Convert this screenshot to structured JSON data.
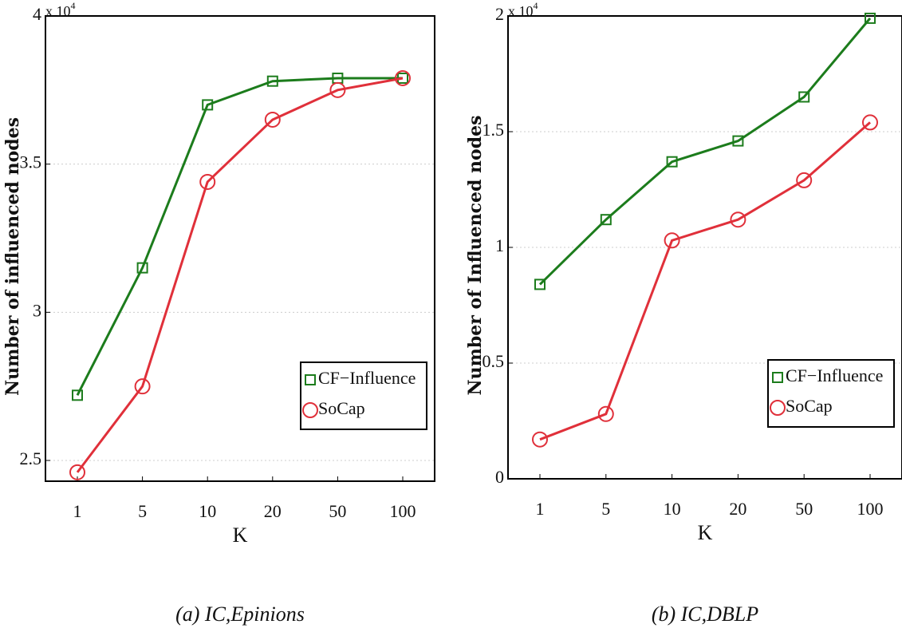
{
  "chart_data": [
    {
      "type": "line",
      "caption": "(a) IC,Epinions",
      "x_label": "K",
      "y_label": "Number of influenced nodes",
      "multiplier": "x 10",
      "multiplier_exp": "4",
      "categories": [
        "1",
        "5",
        "10",
        "20",
        "50",
        "100"
      ],
      "series": [
        {
          "name": "CF−Influence",
          "color": "#1c7c1c",
          "marker": "square",
          "values": [
            2.72,
            3.15,
            3.7,
            3.78,
            3.79,
            3.79
          ]
        },
        {
          "name": "SoCap",
          "color": "#e0303a",
          "marker": "circle",
          "values": [
            2.46,
            2.75,
            3.44,
            3.65,
            3.75,
            3.79
          ]
        }
      ],
      "ylim": [
        2.43,
        4
      ],
      "yticks": [
        2.5,
        3,
        3.5,
        4
      ],
      "grid": true,
      "legend": "lower right"
    },
    {
      "type": "line",
      "caption": "(b) IC,DBLP",
      "x_label": "K",
      "y_label": "Number of Influenced nodes",
      "multiplier": "x 10",
      "multiplier_exp": "4",
      "categories": [
        "1",
        "5",
        "10",
        "20",
        "50",
        "100"
      ],
      "series": [
        {
          "name": "CF−Influence",
          "color": "#1c7c1c",
          "marker": "square",
          "values": [
            0.84,
            1.12,
            1.37,
            1.46,
            1.65,
            1.99
          ]
        },
        {
          "name": "SoCap",
          "color": "#e0303a",
          "marker": "circle",
          "values": [
            0.17,
            0.28,
            1.03,
            1.12,
            1.29,
            1.54
          ]
        }
      ],
      "ylim": [
        0,
        2
      ],
      "yticks": [
        0,
        0.5,
        1,
        1.5,
        2
      ],
      "grid": true,
      "legend": "lower right"
    }
  ]
}
